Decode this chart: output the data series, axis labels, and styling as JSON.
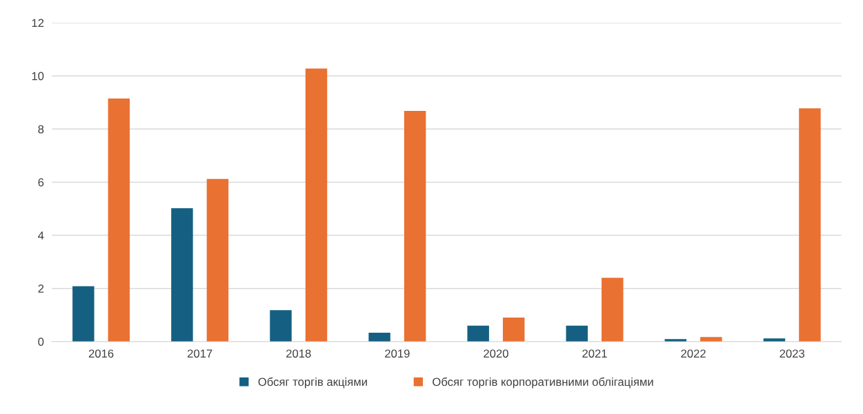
{
  "chart_data": {
    "type": "bar",
    "categories": [
      "2016",
      "2017",
      "2018",
      "2019",
      "2020",
      "2021",
      "2022",
      "2023"
    ],
    "series": [
      {
        "name": "Обсяг торгів акціями",
        "color": "#156082",
        "values": [
          2.08,
          5.02,
          1.18,
          0.33,
          0.6,
          0.6,
          0.09,
          0.12
        ]
      },
      {
        "name": "Обсяг торгів корпоративними облігаціями",
        "color": "#e97132",
        "values": [
          9.15,
          6.12,
          10.28,
          8.68,
          0.9,
          2.4,
          0.17,
          8.78
        ]
      }
    ],
    "ylim": [
      0,
      12
    ],
    "yticks": [
      0,
      2,
      4,
      6,
      8,
      10,
      12
    ],
    "grid": "y",
    "legend": "bottom"
  }
}
